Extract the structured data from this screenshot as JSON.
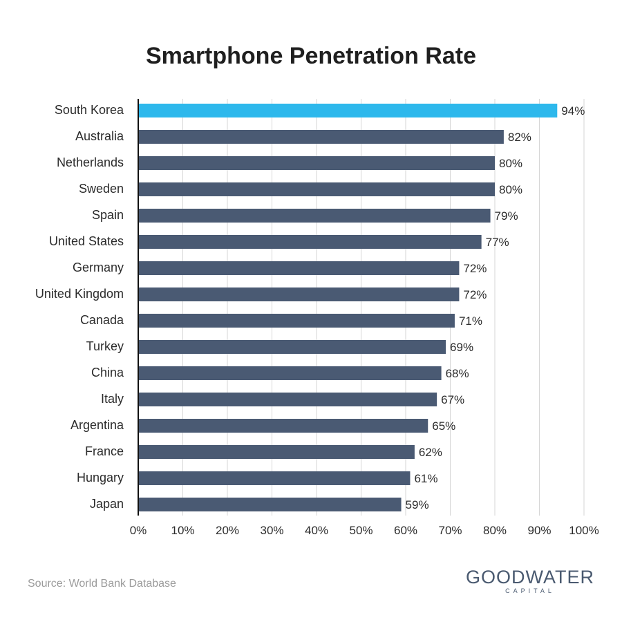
{
  "chart_data": {
    "type": "bar",
    "orientation": "horizontal",
    "title": "Smartphone Penetration Rate",
    "categories": [
      "South Korea",
      "Australia",
      "Netherlands",
      "Sweden",
      "Spain",
      "United States",
      "Germany",
      "United Kingdom",
      "Canada",
      "Turkey",
      "China",
      "Italy",
      "Argentina",
      "France",
      "Hungary",
      "Japan"
    ],
    "values": [
      94,
      82,
      80,
      80,
      79,
      77,
      72,
      72,
      71,
      69,
      68,
      67,
      65,
      62,
      61,
      59
    ],
    "value_labels": [
      "94%",
      "82%",
      "80%",
      "80%",
      "79%",
      "77%",
      "72%",
      "72%",
      "71%",
      "69%",
      "68%",
      "67%",
      "65%",
      "62%",
      "61%",
      "59%"
    ],
    "xlim": [
      0,
      100
    ],
    "xticks": [
      0,
      10,
      20,
      30,
      40,
      50,
      60,
      70,
      80,
      90,
      100
    ],
    "xtick_labels": [
      "0%",
      "10%",
      "20%",
      "30%",
      "40%",
      "50%",
      "60%",
      "70%",
      "80%",
      "90%",
      "100%"
    ],
    "grid": true,
    "highlight_color": "#2db8ec",
    "bar_color": "#4a5a73",
    "highlight_index": 0
  },
  "footer": {
    "source": "Source: World Bank Database",
    "brand_main": "GOODWATER",
    "brand_sub": "CAPITAL"
  }
}
